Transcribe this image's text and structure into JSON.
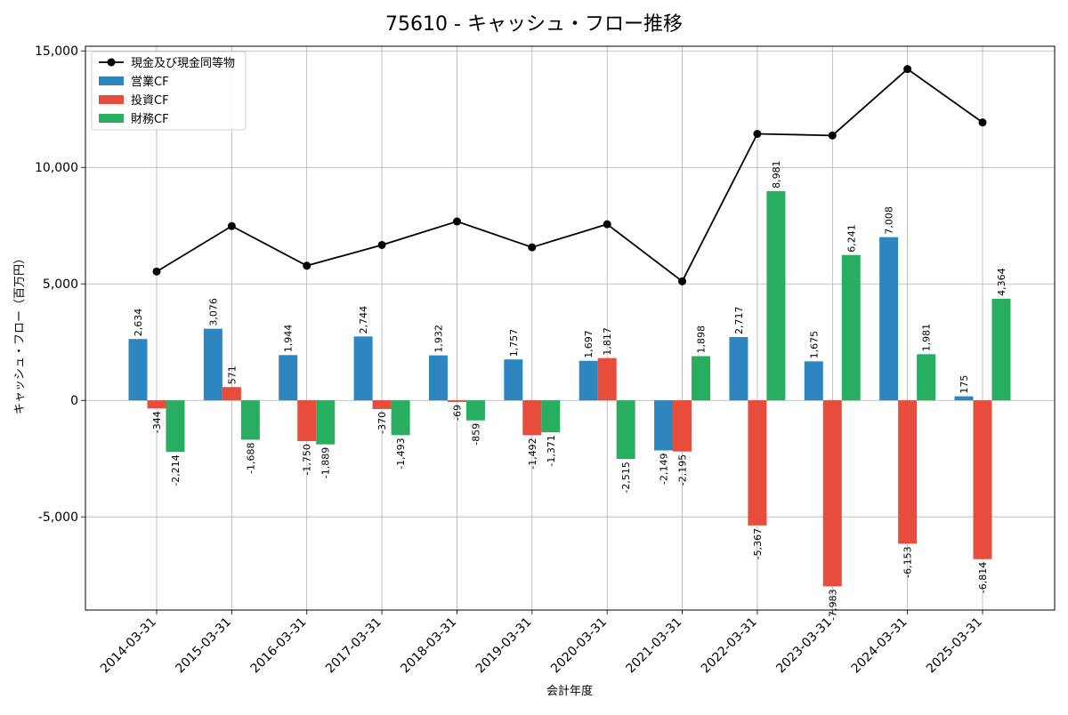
{
  "chart_data": {
    "type": "bar",
    "title": "75610 - キャッシュ・フロー推移",
    "xlabel": "会計年度",
    "ylabel": "キャッシュ・フロー（百万円）",
    "categories": [
      "2014-03-31",
      "2015-03-31",
      "2016-03-31",
      "2017-03-31",
      "2018-03-31",
      "2019-03-31",
      "2020-03-31",
      "2021-03-31",
      "2022-03-31",
      "2023-03-31",
      "2024-03-31",
      "2025-03-31"
    ],
    "ylim": [
      -9000,
      15200
    ],
    "yticks": [
      -5000,
      0,
      5000,
      10000,
      15000
    ],
    "ytick_labels": [
      "-5,000",
      "0",
      "5,000",
      "10,000",
      "15,000"
    ],
    "grid": true,
    "legend_position": "upper-left",
    "series": [
      {
        "name": "営業CF",
        "type": "bar",
        "color": "#2e86c1",
        "values": [
          2634,
          3076,
          1944,
          2744,
          1932,
          1757,
          1697,
          -2149,
          2717,
          1675,
          7008,
          175
        ],
        "labels": [
          "2,634",
          "3,076",
          "1,944",
          "2,744",
          "1,932",
          "1,757",
          "1,697",
          "-2,149",
          "2,717",
          "1,675",
          "7,008",
          "175"
        ]
      },
      {
        "name": "投資CF",
        "type": "bar",
        "color": "#e74c3c",
        "values": [
          -344,
          571,
          -1750,
          -370,
          -69,
          -1492,
          1817,
          -2195,
          -5367,
          -7983,
          -6153,
          -6814
        ],
        "labels": [
          "-344",
          "571",
          "-1,750",
          "-370",
          "-69",
          "-1,492",
          "1,817",
          "-2,195",
          "-5,367",
          "-7,983",
          "-6,153",
          "-6,814"
        ]
      },
      {
        "name": "財務CF",
        "type": "bar",
        "color": "#27ae60",
        "values": [
          -2214,
          -1688,
          -1889,
          -1493,
          -859,
          -1371,
          -2515,
          1898,
          8981,
          6241,
          1981,
          4364
        ],
        "labels": [
          "-2,214",
          "-1,688",
          "-1,889",
          "-1,493",
          "-859",
          "-1,371",
          "-2,515",
          "1,898",
          "8,981",
          "6,241",
          "1,981",
          "4,364"
        ]
      },
      {
        "name": "現金及び現金同等物",
        "type": "line",
        "color": "#000000",
        "values": [
          5530,
          7480,
          5780,
          6670,
          7680,
          6570,
          7560,
          5110,
          11440,
          11370,
          14220,
          11930
        ]
      }
    ]
  }
}
